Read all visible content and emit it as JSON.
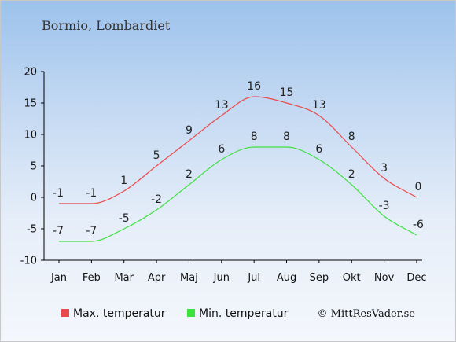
{
  "chart_data": {
    "type": "line",
    "title": "Bormio, Lombardiet",
    "categories": [
      "Jan",
      "Feb",
      "Mar",
      "Apr",
      "Maj",
      "Jun",
      "Jul",
      "Aug",
      "Sep",
      "Okt",
      "Nov",
      "Dec"
    ],
    "ylim": [
      -10,
      20
    ],
    "yticks": [
      -10,
      -5,
      0,
      5,
      10,
      15,
      20
    ],
    "grid": false,
    "legend_position": "bottom-left",
    "series": [
      {
        "name": "Max. temperatur",
        "color": "#ea4a4a",
        "values": [
          -1,
          -1,
          1,
          5,
          9,
          13,
          16,
          15,
          13,
          8,
          3,
          0
        ]
      },
      {
        "name": "Min. temperatur",
        "color": "#3ee03e",
        "values": [
          -7,
          -7,
          -5,
          -2,
          2,
          6,
          8,
          8,
          6,
          2,
          -3,
          -6
        ]
      }
    ],
    "credit": "© MittResVader.se"
  }
}
